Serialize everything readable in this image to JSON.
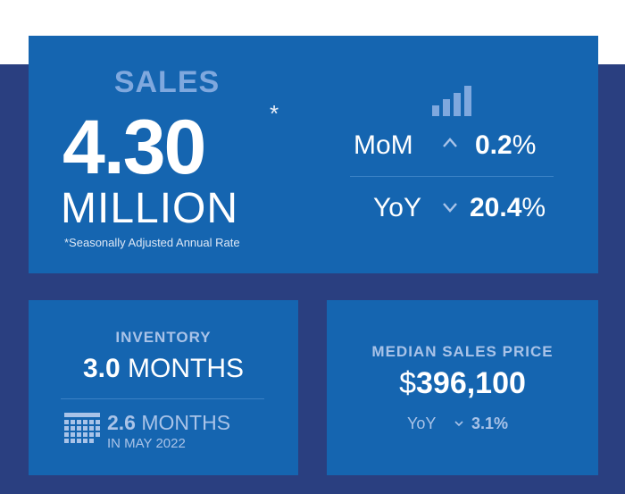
{
  "sales": {
    "title": "SALES",
    "number": "4.30",
    "asterisk": "*",
    "unit": "MILLION",
    "footnote": "*Seasonally Adjusted Annual Rate",
    "mom_label": "MoM",
    "mom_direction": "up",
    "mom_value": "0.2",
    "mom_pct": "%",
    "yoy_label": "YoY",
    "yoy_direction": "down",
    "yoy_value": "20.4",
    "yoy_pct": "%"
  },
  "inventory": {
    "title": "INVENTORY",
    "value": "3.0",
    "unit": "MONTHS",
    "prev_value": "2.6",
    "prev_unit": "MONTHS",
    "prev_date": "IN MAY 2022"
  },
  "median_price": {
    "title": "MEDIAN SALES PRICE",
    "currency": "$",
    "value": "396,100",
    "yoy_label": "YoY",
    "yoy_direction": "down",
    "yoy_value": "3.1%"
  },
  "icons": {
    "bars": "bar-chart-icon",
    "up": "chevron-up-icon",
    "down": "chevron-down-icon",
    "calendar": "calendar-icon"
  },
  "colors": {
    "background": "#2a3f80",
    "panel": "#1565b0",
    "accent_light": "#7fa8de",
    "muted_text": "#a9c3e8"
  }
}
